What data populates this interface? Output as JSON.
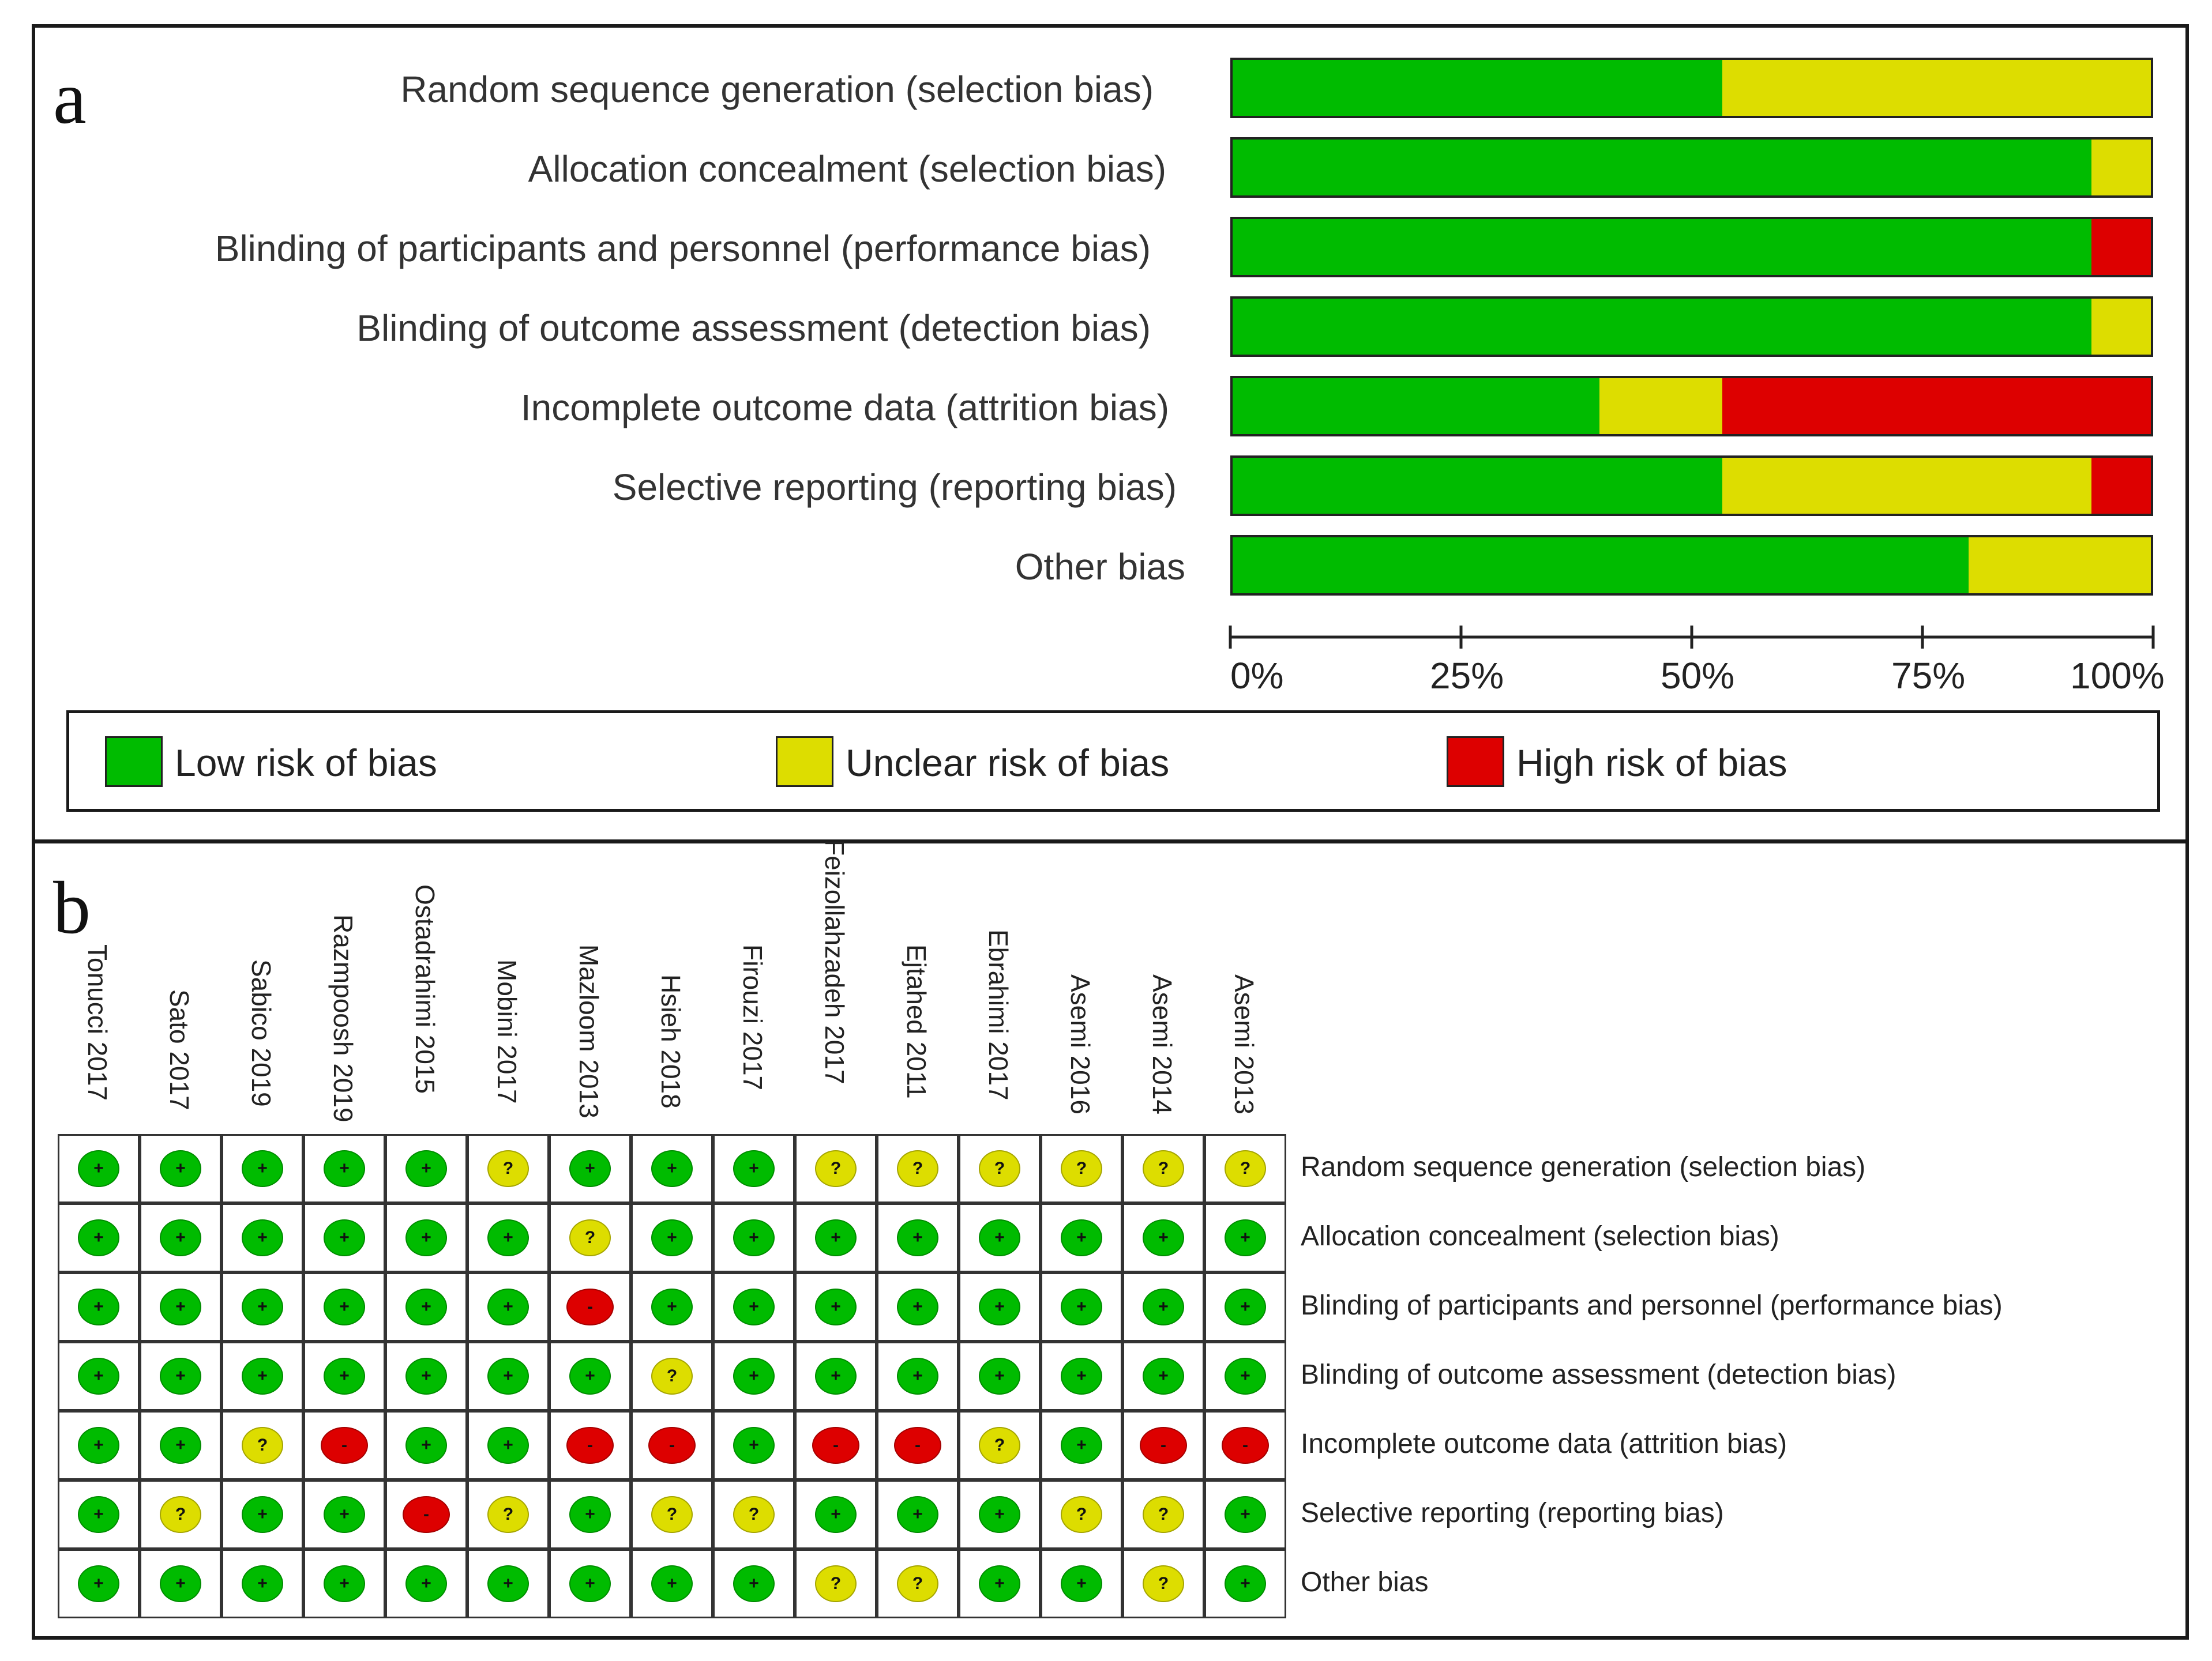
{
  "chart_data": [
    {
      "type": "bar",
      "orientation": "horizontal",
      "stacked": true,
      "panel_label": "a",
      "categories": [
        "Random sequence generation (selection bias)",
        "Allocation concealment (selection bias)",
        "Blinding of participants and personnel (performance bias)",
        "Blinding of outcome assessment (detection bias)",
        "Incomplete outcome data (attrition bias)",
        "Selective reporting (reporting bias)",
        "Other bias"
      ],
      "series": [
        {
          "name": "Low risk of bias",
          "color": "#00bb00",
          "values": [
            53.3,
            93.3,
            93.3,
            93.3,
            40.0,
            53.3,
            80.0
          ]
        },
        {
          "name": "Unclear risk of bias",
          "color": "#dddd00",
          "values": [
            46.7,
            6.7,
            0.0,
            6.7,
            13.3,
            40.0,
            20.0
          ]
        },
        {
          "name": "High risk of bias",
          "color": "#dd0000",
          "values": [
            0.0,
            0.0,
            6.7,
            0.0,
            46.7,
            6.7,
            0.0
          ]
        }
      ],
      "x_ticks": [
        "0%",
        "25%",
        "50%",
        "75%",
        "100%"
      ],
      "xlim": [
        0,
        100
      ],
      "legend_position": "bottom"
    },
    {
      "type": "table",
      "panel_label": "b",
      "studies": [
        "Tonucci 2017",
        "Sato 2017",
        "Sabico 2019",
        "Razmpoosh 2019",
        "Ostadrahimi 2015",
        "Mobini 2017",
        "Mazloom 2013",
        "Hsieh 2018",
        "Firouzi 2017",
        "Feizollahzadeh 2017",
        "Ejtahed 2011",
        "Ebrahimi 2017",
        "Asemi 2016",
        "Asemi 2014",
        "Asemi 2013"
      ],
      "domains": [
        "Random sequence generation (selection bias)",
        "Allocation concealment (selection bias)",
        "Blinding of participants and personnel (performance bias)",
        "Blinding of outcome assessment (detection bias)",
        "Incomplete outcome data (attrition bias)",
        "Selective reporting (reporting bias)",
        "Other bias"
      ],
      "ratings": [
        [
          "+",
          "+",
          "+",
          "+",
          "+",
          "?",
          "+",
          "+",
          "+",
          "?",
          "?",
          "?",
          "?",
          "?",
          "?"
        ],
        [
          "+",
          "+",
          "+",
          "+",
          "+",
          "+",
          "?",
          "+",
          "+",
          "+",
          "+",
          "+",
          "+",
          "+",
          "+"
        ],
        [
          "+",
          "+",
          "+",
          "+",
          "+",
          "+",
          "-",
          "+",
          "+",
          "+",
          "+",
          "+",
          "+",
          "+",
          "+"
        ],
        [
          "+",
          "+",
          "+",
          "+",
          "+",
          "+",
          "+",
          "?",
          "+",
          "+",
          "+",
          "+",
          "+",
          "+",
          "+"
        ],
        [
          "+",
          "+",
          "?",
          "-",
          "+",
          "+",
          "-",
          "-",
          "+",
          "-",
          "-",
          "?",
          "+",
          "-",
          "-"
        ],
        [
          "+",
          "?",
          "+",
          "+",
          "-",
          "?",
          "+",
          "?",
          "?",
          "+",
          "+",
          "+",
          "?",
          "?",
          "+"
        ],
        [
          "+",
          "+",
          "+",
          "+",
          "+",
          "+",
          "+",
          "+",
          "+",
          "?",
          "?",
          "+",
          "+",
          "?",
          "+"
        ]
      ],
      "rating_colors": {
        "+": "#00bb00",
        "?": "#dddd00",
        "-": "#dd0000"
      }
    }
  ]
}
